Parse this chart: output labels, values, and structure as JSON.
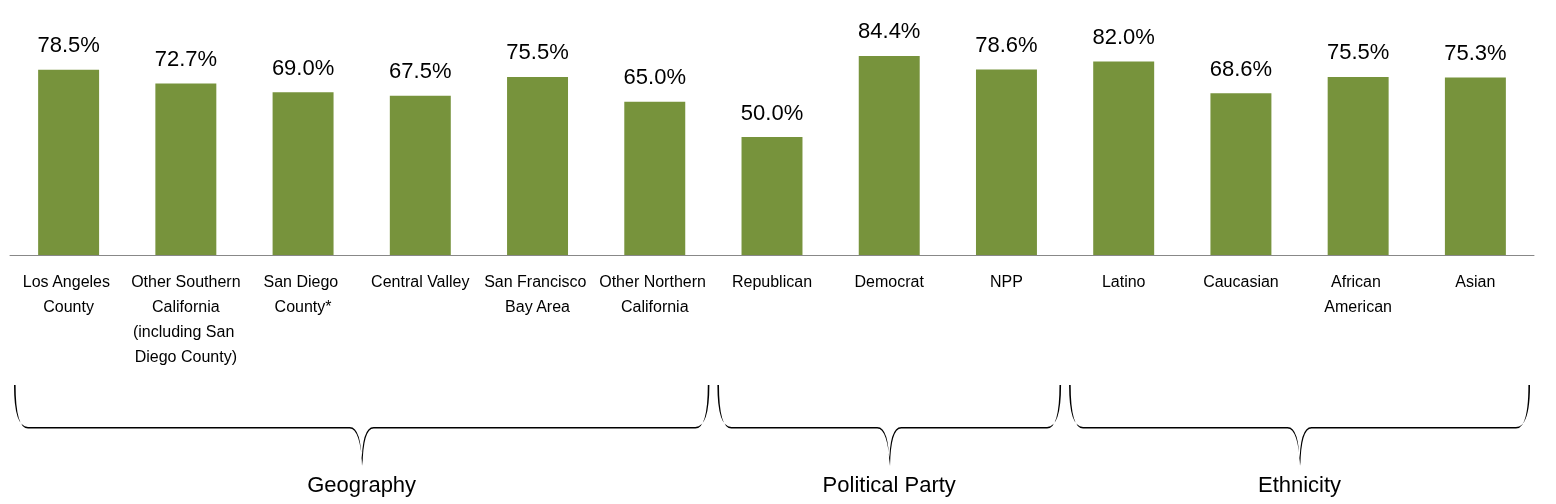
{
  "chart_data": {
    "type": "bar",
    "categories": [
      "Los Angeles County",
      "Other Southern California (including San Diego County)",
      "San Diego County*",
      "Central Valley",
      "San Francisco Bay Area",
      "Other Northern California",
      "Republican",
      "Democrat",
      "NPP",
      "Latino",
      "Caucasian",
      "African American",
      "Asian"
    ],
    "series": [
      {
        "color": "#77933c",
        "values": [
          78.5,
          72.7,
          69.0,
          67.5,
          75.5,
          65.0,
          50.0,
          84.4,
          78.6,
          82.0,
          68.6,
          75.5,
          75.3
        ],
        "value_labels": [
          "78.5%",
          "72.7%",
          "69.0%",
          "67.5%",
          "75.5%",
          "65.0%",
          "50.0%",
          "84.4%",
          "78.6%",
          "82.0%",
          "68.6%",
          "75.5%",
          "75.3%"
        ]
      }
    ],
    "annotations": [
      "Geography",
      "Political Party",
      "Ethnicity"
    ]
  }
}
